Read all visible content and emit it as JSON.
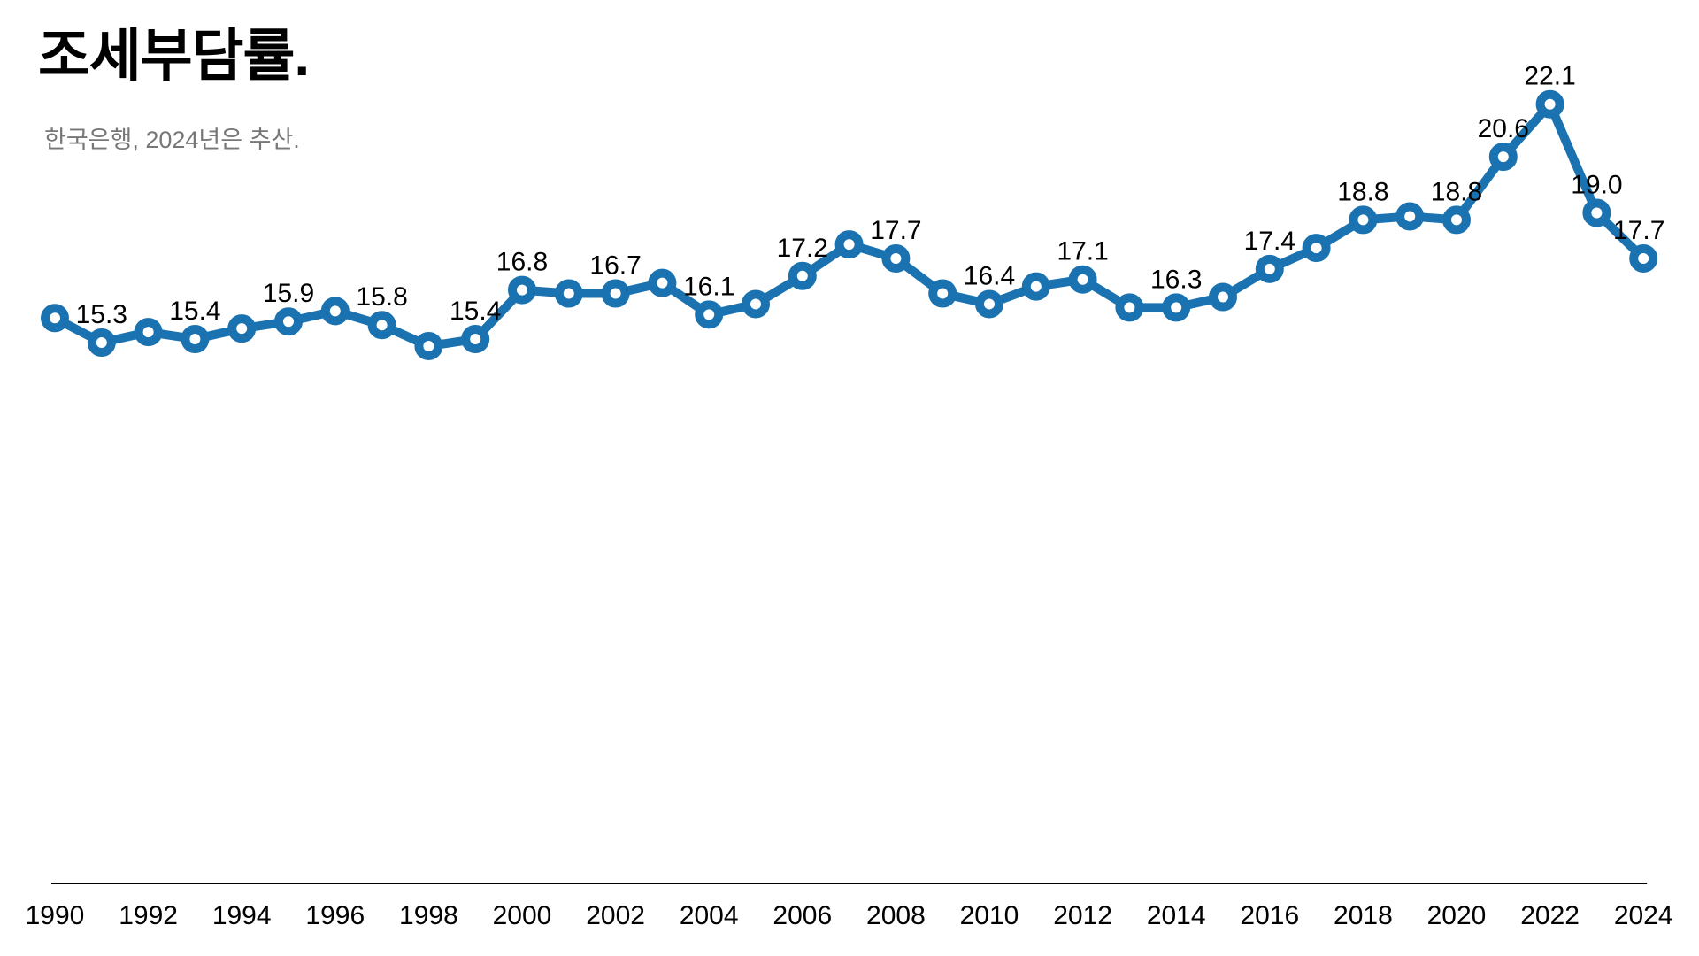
{
  "header": {
    "title": "조세부담률.",
    "subtitle": "한국은행, 2024년은 추산."
  },
  "chart_data": {
    "type": "line",
    "series_name": "조세부담률",
    "x": [
      1990,
      1991,
      1992,
      1993,
      1994,
      1995,
      1996,
      1997,
      1998,
      1999,
      2000,
      2001,
      2002,
      2003,
      2004,
      2005,
      2006,
      2007,
      2008,
      2009,
      2010,
      2011,
      2012,
      2013,
      2014,
      2015,
      2016,
      2017,
      2018,
      2019,
      2020,
      2021,
      2022,
      2023,
      2024
    ],
    "values": [
      16.0,
      15.3,
      15.6,
      15.4,
      15.7,
      15.9,
      16.2,
      15.8,
      15.2,
      15.4,
      16.8,
      16.7,
      16.7,
      17.0,
      16.1,
      16.4,
      17.2,
      18.1,
      17.7,
      16.7,
      16.4,
      16.9,
      17.1,
      16.3,
      16.3,
      16.6,
      17.4,
      18.0,
      18.8,
      18.9,
      18.8,
      20.6,
      22.1,
      19.0,
      17.7
    ],
    "point_labels": {
      "1991": "15.3",
      "1993": "15.4",
      "1995": "15.9",
      "1997": "15.8",
      "1999": "15.4",
      "2000": "16.8",
      "2002": "16.7",
      "2004": "16.1",
      "2006": "17.2",
      "2008": "17.7",
      "2010": "16.4",
      "2012": "17.1",
      "2014": "16.3",
      "2016": "17.4",
      "2018": "18.8",
      "2020": "18.8",
      "2021": "20.6",
      "2022": "22.1",
      "2023": "19.0",
      "2024": "17.7"
    },
    "x_tick_labels": [
      "1990",
      "1992",
      "1994",
      "1996",
      "1998",
      "2000",
      "2002",
      "2004",
      "2006",
      "2008",
      "2010",
      "2012",
      "2014",
      "2016",
      "2018",
      "2020",
      "2022",
      "2024"
    ],
    "ylim": [
      15.2,
      22.1
    ],
    "grid": "off",
    "legend": "none",
    "line_color": "#1a73b0",
    "label_color": "#000000",
    "axis_line_color": "#000000",
    "title": "조세부담률.",
    "xlabel": "",
    "ylabel": ""
  }
}
